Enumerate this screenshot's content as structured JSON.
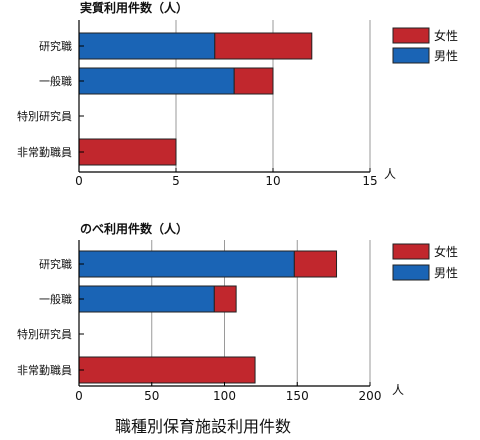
{
  "figure_title": "職種別保育施設利用件数",
  "colors": {
    "female": "#c1272d",
    "male": "#1a64b5",
    "axis": "#000000",
    "grid": "#9a9a9a"
  },
  "chart_data": [
    {
      "type": "bar",
      "orientation": "horizontal",
      "stacked": true,
      "title": "実質利用件数（人）",
      "unit": "人",
      "categories": [
        "研究職",
        "一般職",
        "特別研究員",
        "非常勤職員"
      ],
      "series": [
        {
          "name": "男性",
          "color": "#1a64b5",
          "values": [
            7,
            8,
            0,
            0
          ]
        },
        {
          "name": "女性",
          "color": "#c1272d",
          "values": [
            5,
            2,
            0,
            5
          ]
        }
      ],
      "xlim": [
        0,
        15
      ],
      "xticks": [
        0,
        5,
        10,
        15
      ],
      "grid": true,
      "legend": {
        "position": "right",
        "items": [
          "女性",
          "男性"
        ]
      }
    },
    {
      "type": "bar",
      "orientation": "horizontal",
      "stacked": true,
      "title": "のべ利用件数（人）",
      "unit": "人",
      "categories": [
        "研究職",
        "一般職",
        "特別研究員",
        "非常勤職員"
      ],
      "series": [
        {
          "name": "男性",
          "color": "#1a64b5",
          "values": [
            148,
            93,
            0,
            0
          ]
        },
        {
          "name": "女性",
          "color": "#c1272d",
          "values": [
            29,
            15,
            0,
            121
          ]
        }
      ],
      "xlim": [
        0,
        200
      ],
      "xticks": [
        0,
        50,
        100,
        150,
        200
      ],
      "grid": true,
      "legend": {
        "position": "right",
        "items": [
          "女性",
          "男性"
        ]
      }
    }
  ]
}
